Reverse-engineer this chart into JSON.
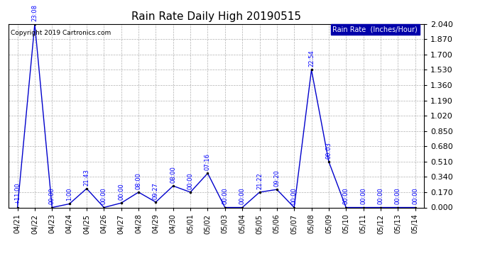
{
  "title": "Rain Rate Daily High 20190515",
  "copyright": "Copyright 2019 Cartronics.com",
  "legend_label": "Rain Rate  (Inches/Hour)",
  "dates": [
    "04/21",
    "04/22",
    "04/23",
    "04/24",
    "04/25",
    "04/26",
    "04/27",
    "04/28",
    "04/29",
    "04/30",
    "05/01",
    "05/02",
    "05/03",
    "05/04",
    "05/05",
    "05/06",
    "05/07",
    "05/08",
    "05/09",
    "05/10",
    "05/11",
    "05/12",
    "05/13",
    "05/14"
  ],
  "values": [
    0.0,
    2.04,
    0.0,
    0.04,
    0.21,
    0.0,
    0.05,
    0.17,
    0.06,
    0.24,
    0.17,
    0.38,
    0.0,
    0.0,
    0.17,
    0.2,
    0.0,
    1.53,
    0.51,
    0.0,
    0.0,
    0.0,
    0.0,
    0.0
  ],
  "time_labels": [
    "+11:00",
    "23:08",
    "00:00",
    "1:00",
    "21:43",
    "00:00",
    "00:00",
    "08:00",
    "09:27",
    "08:00",
    "00:00",
    "07:16",
    "00:00",
    "00:00",
    "21:22",
    "09:20",
    "00:00",
    "22:54",
    "00:03",
    "00:00",
    "00:00",
    "00:00",
    "00:00",
    "00:00"
  ],
  "yticks": [
    0.0,
    0.17,
    0.34,
    0.51,
    0.68,
    0.85,
    1.02,
    1.19,
    1.36,
    1.53,
    1.7,
    1.87,
    2.04
  ],
  "ymax": 2.04,
  "line_color": "#0000cc",
  "title_color": "#000000",
  "bg_color": "#ffffff",
  "grid_color": "#b0b0b0",
  "legend_bg": "#0000aa",
  "legend_fg": "#ffffff",
  "title_fontsize": 11,
  "tick_fontsize": 7,
  "ytick_fontsize": 8,
  "annotation_fontsize": 6
}
